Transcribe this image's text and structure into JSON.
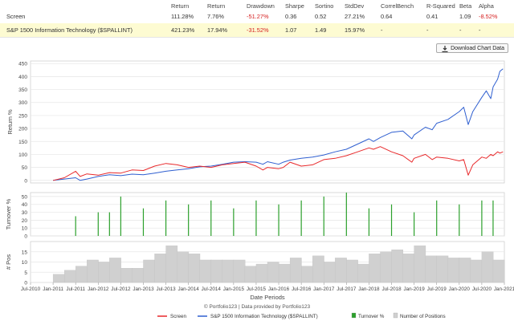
{
  "stats": {
    "headers": [
      "Return",
      "Return",
      "Drawdown",
      "Sharpe",
      "Sortino",
      "StdDev",
      "CorrelBench",
      "R-Squared",
      "Beta",
      "Alpha"
    ],
    "rows": [
      {
        "name": "Screen",
        "values": [
          "111.28%",
          "7.76%",
          "-51.27%",
          "0.36",
          "0.52",
          "27.21%",
          "0.64",
          "0.41",
          "1.09",
          "-8.52%"
        ]
      },
      {
        "name": "S&P 1500 Information Technology ($SPALLINT)",
        "values": [
          "421.23%",
          "17.94%",
          "-31.52%",
          "1.07",
          "1.49",
          "15.97%",
          "-",
          "-",
          "-",
          "-"
        ]
      }
    ]
  },
  "download_label": "Download Chart Data",
  "credit": "© Portfolio123 | Data provided by Portfolio123",
  "colors": {
    "screen": "#e8292b",
    "bench": "#2f5fd0",
    "turnover": "#2ca02c",
    "positions": "#d0d0d0"
  },
  "chart_data": {
    "type": "line",
    "xlabel": "Date Periods",
    "x_ticks": [
      "Jul-2010",
      "Jan-2011",
      "Jul-2011",
      "Jan-2012",
      "Jul-2012",
      "Jan-2013",
      "Jul-2013",
      "Jan-2014",
      "Jul-2014",
      "Jan-2015",
      "Jul-2015",
      "Jan-2016",
      "Jul-2016",
      "Jan-2017",
      "Jul-2017",
      "Jan-2018",
      "Jul-2018",
      "Jan-2019",
      "Jul-2019",
      "Jan-2020",
      "Jul-2020",
      "Jan-2021"
    ],
    "x_start": 2010.5,
    "x_end": 2021.0,
    "panels": [
      {
        "ylabel": "Return %",
        "ylim": [
          -10,
          460
        ],
        "yticks": [
          0,
          50,
          100,
          150,
          200,
          250,
          300,
          350,
          400,
          450
        ],
        "series": [
          {
            "name": "S&P 1500 Information Technology ($SPALLINT)",
            "key": "bench",
            "x": [
              2011.0,
              2011.25,
              2011.5,
              2011.6,
              2011.75,
              2012.0,
              2012.25,
              2012.5,
              2012.75,
              2013.0,
              2013.25,
              2013.5,
              2013.75,
              2014.0,
              2014.25,
              2014.5,
              2014.75,
              2015.0,
              2015.25,
              2015.5,
              2015.65,
              2015.75,
              2016.0,
              2016.1,
              2016.25,
              2016.5,
              2016.75,
              2017.0,
              2017.25,
              2017.5,
              2017.75,
              2018.0,
              2018.1,
              2018.25,
              2018.5,
              2018.75,
              2018.95,
              2019.0,
              2019.25,
              2019.4,
              2019.5,
              2019.75,
              2020.0,
              2020.1,
              2020.2,
              2020.3,
              2020.5,
              2020.6,
              2020.7,
              2020.75,
              2020.85,
              2020.9,
              2020.97
            ],
            "values": [
              0,
              5,
              10,
              0,
              5,
              15,
              22,
              18,
              24,
              22,
              28,
              35,
              40,
              45,
              52,
              55,
              62,
              70,
              72,
              70,
              62,
              72,
              62,
              70,
              78,
              85,
              90,
              98,
              110,
              120,
              140,
              160,
              150,
              165,
              185,
              190,
              160,
              175,
              205,
              195,
              220,
              235,
              265,
              282,
              215,
              265,
              320,
              345,
              315,
              360,
              390,
              420,
              430
            ]
          },
          {
            "name": "Screen",
            "key": "screen",
            "x": [
              2011.0,
              2011.25,
              2011.5,
              2011.6,
              2011.75,
              2012.0,
              2012.25,
              2012.5,
              2012.75,
              2013.0,
              2013.25,
              2013.5,
              2013.75,
              2014.0,
              2014.25,
              2014.5,
              2014.75,
              2015.0,
              2015.25,
              2015.5,
              2015.65,
              2015.75,
              2016.0,
              2016.1,
              2016.25,
              2016.5,
              2016.75,
              2017.0,
              2017.25,
              2017.5,
              2017.75,
              2018.0,
              2018.1,
              2018.25,
              2018.5,
              2018.75,
              2018.95,
              2019.0,
              2019.25,
              2019.4,
              2019.5,
              2019.75,
              2020.0,
              2020.1,
              2020.2,
              2020.3,
              2020.5,
              2020.6,
              2020.7,
              2020.75,
              2020.85,
              2020.9,
              2020.97
            ],
            "values": [
              0,
              10,
              35,
              15,
              25,
              20,
              30,
              28,
              40,
              38,
              55,
              65,
              60,
              50,
              55,
              50,
              60,
              65,
              70,
              55,
              40,
              50,
              45,
              50,
              70,
              55,
              60,
              80,
              85,
              95,
              110,
              125,
              120,
              130,
              110,
              95,
              70,
              85,
              100,
              80,
              90,
              85,
              75,
              80,
              20,
              60,
              90,
              85,
              100,
              95,
              110,
              105,
              110
            ]
          }
        ]
      },
      {
        "ylabel": "Turnover %",
        "ylim": [
          0,
          55
        ],
        "yticks": [
          0,
          10,
          20,
          30,
          40,
          50
        ],
        "series": [
          {
            "name": "Turnover %",
            "key": "turnover",
            "type": "bar",
            "x": [
              2011.5,
              2012.0,
              2012.25,
              2012.5,
              2013.0,
              2013.5,
              2014.0,
              2014.5,
              2015.0,
              2015.5,
              2016.0,
              2016.5,
              2017.0,
              2017.5,
              2018.0,
              2018.5,
              2019.0,
              2019.5,
              2020.0,
              2020.5,
              2020.75
            ],
            "values": [
              25,
              30,
              30,
              50,
              35,
              45,
              40,
              45,
              35,
              45,
              40,
              45,
              50,
              55,
              35,
              40,
              30,
              45,
              40,
              45,
              45
            ]
          }
        ]
      },
      {
        "ylabel": "# Pos",
        "ylim": [
          0,
          20
        ],
        "yticks": [
          0,
          5,
          10,
          15
        ],
        "series": [
          {
            "name": "Number of Positions",
            "key": "positions",
            "type": "step",
            "x": [
              2011.0,
              2011.25,
              2011.5,
              2011.75,
              2012.0,
              2012.25,
              2012.5,
              2012.75,
              2013.0,
              2013.25,
              2013.5,
              2013.75,
              2014.0,
              2014.25,
              2014.5,
              2014.75,
              2015.0,
              2015.25,
              2015.5,
              2015.75,
              2016.0,
              2016.25,
              2016.5,
              2016.75,
              2017.0,
              2017.25,
              2017.5,
              2017.75,
              2018.0,
              2018.25,
              2018.5,
              2018.75,
              2019.0,
              2019.25,
              2019.5,
              2019.75,
              2020.0,
              2020.25,
              2020.5,
              2020.75,
              2021.0
            ],
            "values": [
              4,
              6,
              8,
              11,
              10,
              12,
              7,
              7,
              11,
              14,
              18,
              15,
              14,
              11,
              11,
              11,
              11,
              8,
              9,
              10,
              9,
              12,
              8,
              13,
              10,
              12,
              11,
              9,
              14,
              15,
              16,
              14,
              18,
              13,
              13,
              12,
              12,
              11,
              15,
              11,
              11
            ]
          }
        ]
      }
    ],
    "legend": [
      "Screen",
      "S&P 1500 Information Technology ($SPALLINT)",
      "Turnover %",
      "Number of Positions"
    ],
    "legend_position": "bottom"
  }
}
